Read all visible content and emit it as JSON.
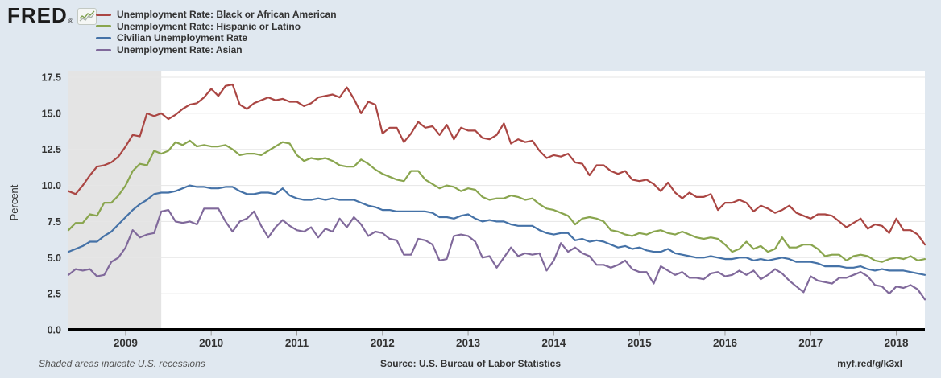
{
  "header": {
    "logo_text": "FRED",
    "logo_registered": "®",
    "legend": [
      {
        "label": "Unemployment Rate: Black or African American",
        "color": "#aa4643"
      },
      {
        "label": "Unemployment Rate: Hispanic or Latino",
        "color": "#89a54e"
      },
      {
        "label": "Civilian Unemployment Rate",
        "color": "#4572a7"
      },
      {
        "label": "Unemployment Rate: Asian",
        "color": "#80699b"
      }
    ]
  },
  "footer": {
    "recession_note": "Shaded areas indicate U.S. recessions",
    "source": "Source: U.S. Bureau of Labor Statistics",
    "short_url": "myf.red/g/k3xl"
  },
  "colors": {
    "background": "#e0e8f0",
    "plot_background": "#ffffff",
    "recession_shading": "#e4e4e4",
    "gridline": "#e6e6e6",
    "axis_line": "#000000",
    "tick_mark": "#999999",
    "axis_text": "#333333"
  },
  "chart_data": {
    "type": "line",
    "title": "",
    "xlabel": "",
    "ylabel": "Percent",
    "ylim": [
      0,
      17.5
    ],
    "yticks": [
      0.0,
      2.5,
      5.0,
      7.5,
      10.0,
      12.5,
      15.0,
      17.5
    ],
    "grid": true,
    "legend_position": "top-left",
    "frequency": "monthly",
    "x_start": "2008-05",
    "x_end": "2018-05",
    "x_year_ticks": [
      {
        "label": "2009",
        "index": 8
      },
      {
        "label": "2010",
        "index": 20
      },
      {
        "label": "2011",
        "index": 32
      },
      {
        "label": "2012",
        "index": 44
      },
      {
        "label": "2013",
        "index": 56
      },
      {
        "label": "2014",
        "index": 68
      },
      {
        "label": "2015",
        "index": 80
      },
      {
        "label": "2016",
        "index": 92
      },
      {
        "label": "2017",
        "index": 104
      },
      {
        "label": "2018",
        "index": 116
      }
    ],
    "recession_band": {
      "start_index": 0,
      "end_index": 13,
      "note": "recession shading through June 2009"
    },
    "series": [
      {
        "name": "Unemployment Rate: Black or African American",
        "color": "#aa4643",
        "values": [
          9.6,
          9.4,
          10.0,
          10.7,
          11.3,
          11.4,
          11.6,
          12.0,
          12.7,
          13.5,
          13.4,
          15.0,
          14.8,
          15.0,
          14.6,
          14.9,
          15.3,
          15.6,
          15.7,
          16.1,
          16.7,
          16.2,
          16.9,
          17.0,
          15.6,
          15.3,
          15.7,
          15.9,
          16.1,
          15.9,
          16.0,
          15.8,
          15.8,
          15.5,
          15.7,
          16.1,
          16.2,
          16.3,
          16.1,
          16.8,
          16.0,
          15.0,
          15.8,
          15.6,
          13.6,
          14.0,
          14.0,
          13.0,
          13.6,
          14.4,
          14.0,
          14.1,
          13.5,
          14.2,
          13.2,
          14.0,
          13.8,
          13.8,
          13.3,
          13.2,
          13.5,
          14.3,
          12.9,
          13.2,
          13.0,
          13.1,
          12.4,
          11.9,
          12.1,
          12.0,
          12.2,
          11.6,
          11.5,
          10.7,
          11.4,
          11.4,
          11.0,
          10.8,
          11.0,
          10.4,
          10.3,
          10.4,
          10.1,
          9.6,
          10.2,
          9.5,
          9.1,
          9.5,
          9.2,
          9.2,
          9.4,
          8.3,
          8.8,
          8.8,
          9.0,
          8.8,
          8.2,
          8.6,
          8.4,
          8.1,
          8.3,
          8.6,
          8.1,
          7.9,
          7.7,
          8.0,
          8.0,
          7.9,
          7.5,
          7.1,
          7.4,
          7.7,
          7.0,
          7.3,
          7.2,
          6.7,
          7.7,
          6.9,
          6.9,
          6.6,
          5.9
        ]
      },
      {
        "name": "Unemployment Rate: Hispanic or Latino",
        "color": "#89a54e",
        "values": [
          6.9,
          7.4,
          7.4,
          8.0,
          7.9,
          8.8,
          8.8,
          9.3,
          10.0,
          11.0,
          11.5,
          11.4,
          12.4,
          12.2,
          12.4,
          13.0,
          12.8,
          13.1,
          12.7,
          12.8,
          12.7,
          12.7,
          12.8,
          12.5,
          12.1,
          12.2,
          12.2,
          12.1,
          12.4,
          12.7,
          13.0,
          12.9,
          12.1,
          11.7,
          11.9,
          11.8,
          11.9,
          11.7,
          11.4,
          11.3,
          11.3,
          11.8,
          11.5,
          11.1,
          10.8,
          10.6,
          10.4,
          10.3,
          11.0,
          11.0,
          10.4,
          10.1,
          9.8,
          10.0,
          9.9,
          9.6,
          9.8,
          9.7,
          9.2,
          9.0,
          9.1,
          9.1,
          9.3,
          9.2,
          9.0,
          9.1,
          8.7,
          8.4,
          8.3,
          8.1,
          7.9,
          7.3,
          7.7,
          7.8,
          7.7,
          7.5,
          6.9,
          6.8,
          6.6,
          6.5,
          6.7,
          6.6,
          6.8,
          6.9,
          6.7,
          6.6,
          6.8,
          6.6,
          6.4,
          6.3,
          6.4,
          6.3,
          5.9,
          5.4,
          5.6,
          6.1,
          5.6,
          5.8,
          5.4,
          5.6,
          6.4,
          5.7,
          5.7,
          5.9,
          5.9,
          5.6,
          5.1,
          5.2,
          5.2,
          4.8,
          5.1,
          5.2,
          5.1,
          4.8,
          4.7,
          4.9,
          5.0,
          4.9,
          5.1,
          4.8,
          4.9
        ]
      },
      {
        "name": "Civilian Unemployment Rate",
        "color": "#4572a7",
        "values": [
          5.4,
          5.6,
          5.8,
          6.1,
          6.1,
          6.5,
          6.8,
          7.3,
          7.8,
          8.3,
          8.7,
          9.0,
          9.4,
          9.5,
          9.5,
          9.6,
          9.8,
          10.0,
          9.9,
          9.9,
          9.8,
          9.8,
          9.9,
          9.9,
          9.6,
          9.4,
          9.4,
          9.5,
          9.5,
          9.4,
          9.8,
          9.3,
          9.1,
          9.0,
          9.0,
          9.1,
          9.0,
          9.1,
          9.0,
          9.0,
          9.0,
          8.8,
          8.6,
          8.5,
          8.3,
          8.3,
          8.2,
          8.2,
          8.2,
          8.2,
          8.2,
          8.1,
          7.8,
          7.8,
          7.7,
          7.9,
          8.0,
          7.7,
          7.5,
          7.6,
          7.5,
          7.5,
          7.3,
          7.2,
          7.2,
          7.2,
          6.9,
          6.7,
          6.6,
          6.7,
          6.7,
          6.2,
          6.3,
          6.1,
          6.2,
          6.1,
          5.9,
          5.7,
          5.8,
          5.6,
          5.7,
          5.5,
          5.4,
          5.4,
          5.6,
          5.3,
          5.2,
          5.1,
          5.0,
          5.0,
          5.1,
          5.0,
          4.9,
          4.9,
          5.0,
          5.0,
          4.8,
          4.9,
          4.8,
          4.9,
          5.0,
          4.9,
          4.7,
          4.7,
          4.7,
          4.6,
          4.4,
          4.4,
          4.4,
          4.3,
          4.3,
          4.4,
          4.2,
          4.1,
          4.2,
          4.1,
          4.1,
          4.1,
          4.0,
          3.9,
          3.8
        ]
      },
      {
        "name": "Unemployment Rate: Asian",
        "color": "#80699b",
        "values": [
          3.8,
          4.2,
          4.1,
          4.2,
          3.7,
          3.8,
          4.7,
          5.0,
          5.7,
          6.9,
          6.4,
          6.6,
          6.7,
          8.2,
          8.3,
          7.5,
          7.4,
          7.5,
          7.3,
          8.4,
          8.4,
          8.4,
          7.5,
          6.8,
          7.5,
          7.7,
          8.2,
          7.2,
          6.4,
          7.1,
          7.6,
          7.2,
          6.9,
          6.8,
          7.1,
          6.4,
          7.0,
          6.8,
          7.7,
          7.1,
          7.8,
          7.3,
          6.5,
          6.8,
          6.7,
          6.3,
          6.2,
          5.2,
          5.2,
          6.3,
          6.2,
          5.9,
          4.8,
          4.9,
          6.5,
          6.6,
          6.5,
          6.1,
          5.0,
          5.1,
          4.3,
          5.0,
          5.7,
          5.1,
          5.3,
          5.2,
          5.3,
          4.1,
          4.8,
          6.0,
          5.4,
          5.7,
          5.3,
          5.1,
          4.5,
          4.5,
          4.3,
          4.5,
          4.8,
          4.2,
          4.0,
          4.0,
          3.2,
          4.4,
          4.1,
          3.8,
          4.0,
          3.6,
          3.6,
          3.5,
          3.9,
          4.0,
          3.7,
          3.8,
          4.1,
          3.8,
          4.1,
          3.5,
          3.8,
          4.2,
          3.9,
          3.4,
          3.0,
          2.6,
          3.7,
          3.4,
          3.3,
          3.2,
          3.6,
          3.6,
          3.8,
          4.0,
          3.7,
          3.1,
          3.0,
          2.5,
          3.0,
          2.9,
          3.1,
          2.8,
          2.1
        ]
      }
    ]
  }
}
